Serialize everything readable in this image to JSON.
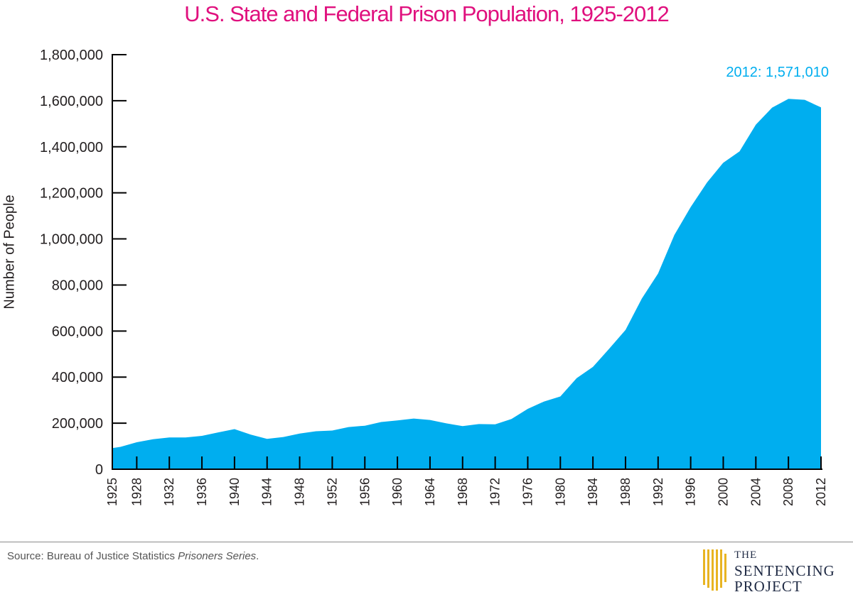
{
  "chart_data": {
    "type": "area",
    "title": "U.S. State and Federal Prison Population, 1925-2012",
    "xlabel": "",
    "ylabel": "Number of People",
    "ylim": [
      0,
      1800000
    ],
    "xlim": [
      1925,
      2012
    ],
    "yticks": [
      "0",
      "200,000",
      "400,000",
      "600,000",
      "800,000",
      "1,000,000",
      "1,200,000",
      "1,400,000",
      "1,600,000",
      "1,800,000"
    ],
    "xticks": [
      "1925",
      "1928",
      "1932",
      "1936",
      "1940",
      "1944",
      "1948",
      "1952",
      "1956",
      "1960",
      "1964",
      "1968",
      "1972",
      "1976",
      "1980",
      "1984",
      "1988",
      "1992",
      "1996",
      "2000",
      "2004",
      "2008",
      "2012"
    ],
    "x": [
      1925,
      1926,
      1928,
      1930,
      1932,
      1934,
      1936,
      1938,
      1940,
      1942,
      1944,
      1946,
      1948,
      1950,
      1952,
      1954,
      1956,
      1958,
      1960,
      1962,
      1964,
      1966,
      1968,
      1970,
      1972,
      1974,
      1976,
      1978,
      1980,
      1982,
      1984,
      1986,
      1988,
      1990,
      1992,
      1994,
      1996,
      1998,
      2000,
      2002,
      2004,
      2006,
      2008,
      2010,
      2012
    ],
    "values": [
      92000,
      97000,
      117000,
      130000,
      138000,
      138000,
      145000,
      160000,
      174000,
      150000,
      132000,
      140000,
      155000,
      165000,
      168000,
      183000,
      189000,
      205000,
      212000,
      220000,
      214000,
      199000,
      187000,
      196000,
      195000,
      218000,
      262000,
      294000,
      316000,
      395000,
      444000,
      523000,
      605000,
      741000,
      850000,
      1017000,
      1138000,
      1245000,
      1331000,
      1380000,
      1496000,
      1570000,
      1608000,
      1604000,
      1571010
    ],
    "color": "#00aeef",
    "grid": false,
    "annotation": "2012: 1,571,010"
  },
  "footer": {
    "source_prefix": "Source: Bureau of Justice Statistics ",
    "source_italic": "Prisoners Series",
    "source_suffix": "."
  },
  "logo": {
    "line1": "THE",
    "line2": "SENTENCING",
    "line3": "PROJECT",
    "color": "#e8b422"
  }
}
